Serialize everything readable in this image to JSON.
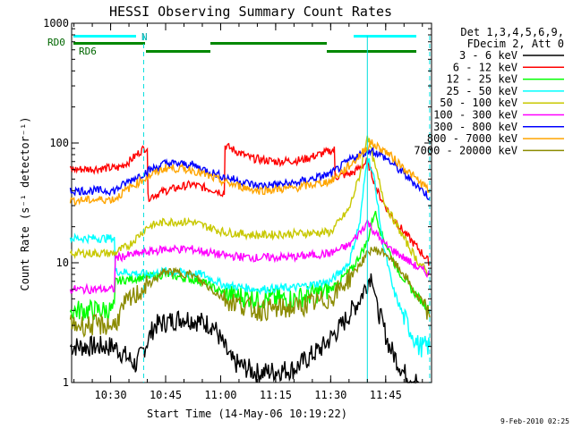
{
  "chart_data": {
    "type": "line",
    "title": "HESSI Observing Summary Count Rates",
    "xlabel": "Start Time (14-May-06 10:19:22)",
    "ylabel": "Count Rate (s⁻¹ detector⁻¹)",
    "y_scale": "log",
    "ylim": [
      1,
      1000
    ],
    "xlim": [
      "10:19:22",
      "11:57:30"
    ],
    "x_ticks": [
      "10:30",
      "10:45",
      "11:00",
      "11:15",
      "11:30",
      "11:45"
    ],
    "y_ticks": [
      "1",
      "10",
      "100",
      "1000"
    ],
    "legend_position": "right",
    "legend_header": [
      "Det 1,3,4,5,6,9,",
      "FDecim 2, Att 0"
    ],
    "series": [
      {
        "name": "3 - 6 keV",
        "color": "#000000",
        "points": [
          [
            "10:19",
            2
          ],
          [
            "10:31",
            2
          ],
          [
            "10:37",
            1.4
          ],
          [
            "10:42",
            3
          ],
          [
            "10:50",
            3.5
          ],
          [
            "10:58",
            3
          ],
          [
            "11:03",
            1.5
          ],
          [
            "11:10",
            1.2
          ],
          [
            "11:20",
            1.3
          ],
          [
            "11:28",
            2
          ],
          [
            "11:33",
            3
          ],
          [
            "11:38",
            5
          ],
          [
            "11:41",
            8
          ],
          [
            "11:43",
            4
          ],
          [
            "11:46",
            2
          ],
          [
            "11:50",
            1.2
          ],
          [
            "11:54",
            1
          ]
        ]
      },
      {
        "name": "6 - 12 keV",
        "color": "#ff0000",
        "points": [
          [
            "10:19",
            60
          ],
          [
            "10:32",
            62
          ],
          [
            "10:35",
            70
          ],
          [
            "10:39",
            90
          ],
          [
            "10:40",
            92
          ],
          [
            "10:40.2",
            35
          ],
          [
            "10:45",
            40
          ],
          [
            "10:52",
            45
          ],
          [
            "10:59",
            40
          ],
          [
            "11:01",
            38
          ],
          [
            "11:01.2",
            95
          ],
          [
            "11:08",
            75
          ],
          [
            "11:15",
            70
          ],
          [
            "11:22",
            72
          ],
          [
            "11:31",
            88
          ],
          [
            "11:31.2",
            52
          ],
          [
            "11:36",
            56
          ],
          [
            "11:40",
            70
          ],
          [
            "11:43",
            38
          ],
          [
            "11:46",
            26
          ],
          [
            "11:50",
            18
          ],
          [
            "11:54",
            13
          ],
          [
            "11:57",
            10
          ]
        ]
      },
      {
        "name": "12 - 25 keV",
        "color": "#00ff00",
        "points": [
          [
            "10:19",
            4
          ],
          [
            "10:31",
            4
          ],
          [
            "10:31.3",
            7
          ],
          [
            "10:38",
            7.5
          ],
          [
            "10:45",
            8
          ],
          [
            "10:55",
            7
          ],
          [
            "11:01",
            5.5
          ],
          [
            "11:10",
            5
          ],
          [
            "11:20",
            5
          ],
          [
            "11:30",
            6
          ],
          [
            "11:36",
            9
          ],
          [
            "11:40",
            15
          ],
          [
            "11:42",
            27
          ],
          [
            "11:44",
            17
          ],
          [
            "11:48",
            9
          ],
          [
            "11:52",
            6
          ],
          [
            "11:57",
            4
          ]
        ]
      },
      {
        "name": "25 - 50 keV",
        "color": "#00ffff",
        "points": [
          [
            "10:19",
            16
          ],
          [
            "10:31",
            16
          ],
          [
            "10:31.3",
            8.5
          ],
          [
            "10:40",
            8
          ],
          [
            "10:45",
            8.5
          ],
          [
            "10:55",
            8
          ],
          [
            "11:01",
            6.5
          ],
          [
            "11:10",
            6
          ],
          [
            "11:20",
            6.2
          ],
          [
            "11:30",
            7
          ],
          [
            "11:35",
            10
          ],
          [
            "11:38",
            22
          ],
          [
            "11:40",
            80
          ],
          [
            "11:42",
            48
          ],
          [
            "11:44",
            16
          ],
          [
            "11:47",
            6
          ],
          [
            "11:50",
            3.5
          ],
          [
            "11:54",
            2
          ],
          [
            "11:57",
            2
          ]
        ]
      },
      {
        "name": "50 - 100 keV",
        "color": "#c8c800",
        "points": [
          [
            "10:19",
            12
          ],
          [
            "10:31",
            12
          ],
          [
            "10:35",
            14
          ],
          [
            "10:40",
            20
          ],
          [
            "10:45",
            22
          ],
          [
            "10:52",
            22
          ],
          [
            "11:01",
            18
          ],
          [
            "11:10",
            17
          ],
          [
            "11:20",
            17.5
          ],
          [
            "11:30",
            18
          ],
          [
            "11:35",
            28
          ],
          [
            "11:38",
            55
          ],
          [
            "11:40",
            118
          ],
          [
            "11:42",
            65
          ],
          [
            "11:45",
            30
          ],
          [
            "11:50",
            16
          ],
          [
            "11:54",
            10
          ],
          [
            "11:57",
            8
          ]
        ]
      },
      {
        "name": "100 - 300 keV",
        "color": "#ff00ff",
        "points": [
          [
            "10:19",
            6
          ],
          [
            "10:31",
            6
          ],
          [
            "10:31.3",
            11
          ],
          [
            "10:38",
            12
          ],
          [
            "10:45",
            13
          ],
          [
            "10:52",
            13
          ],
          [
            "11:01",
            11.5
          ],
          [
            "11:10",
            11
          ],
          [
            "11:20",
            11.2
          ],
          [
            "11:30",
            12
          ],
          [
            "11:35",
            14
          ],
          [
            "11:38",
            18
          ],
          [
            "11:40",
            22
          ],
          [
            "11:42",
            18
          ],
          [
            "11:45",
            14
          ],
          [
            "11:50",
            11
          ],
          [
            "11:54",
            9
          ],
          [
            "11:57",
            8
          ]
        ]
      },
      {
        "name": "300 - 800 keV",
        "color": "#0000ff",
        "points": [
          [
            "10:19",
            40
          ],
          [
            "10:31",
            40
          ],
          [
            "10:35",
            48
          ],
          [
            "10:40",
            58
          ],
          [
            "10:45",
            68
          ],
          [
            "10:52",
            66
          ],
          [
            "11:01",
            52
          ],
          [
            "11:10",
            44
          ],
          [
            "11:20",
            46
          ],
          [
            "11:30",
            55
          ],
          [
            "11:36",
            75
          ],
          [
            "11:41",
            88
          ],
          [
            "11:45",
            75
          ],
          [
            "11:50",
            55
          ],
          [
            "11:54",
            43
          ],
          [
            "11:57",
            35
          ]
        ]
      },
      {
        "name": "800 - 7000 keV",
        "color": "#ffa500",
        "points": [
          [
            "10:19",
            33
          ],
          [
            "10:31",
            34
          ],
          [
            "10:35",
            42
          ],
          [
            "10:40",
            52
          ],
          [
            "10:45",
            62
          ],
          [
            "10:52",
            60
          ],
          [
            "11:01",
            47
          ],
          [
            "11:10",
            40
          ],
          [
            "11:20",
            42
          ],
          [
            "11:30",
            48
          ],
          [
            "11:36",
            68
          ],
          [
            "11:41",
            100
          ],
          [
            "11:45",
            85
          ],
          [
            "11:50",
            62
          ],
          [
            "11:54",
            48
          ],
          [
            "11:57",
            40
          ]
        ]
      },
      {
        "name": "7000 - 20000 keV",
        "color": "#8b8b00",
        "points": [
          [
            "10:19",
            3
          ],
          [
            "10:31",
            3
          ],
          [
            "10:34",
            4.5
          ],
          [
            "10:40",
            6.5
          ],
          [
            "10:45",
            8.5
          ],
          [
            "10:52",
            8
          ],
          [
            "11:01",
            5
          ],
          [
            "11:10",
            4
          ],
          [
            "11:20",
            4.2
          ],
          [
            "11:30",
            5
          ],
          [
            "11:36",
            8
          ],
          [
            "11:41",
            13
          ],
          [
            "11:45",
            12
          ],
          [
            "11:50",
            8
          ],
          [
            "11:54",
            5
          ],
          [
            "11:57",
            3.5
          ]
        ]
      }
    ],
    "annotations": {
      "attenuator_markers": [
        "RD0",
        "RD6",
        "N"
      ],
      "vertical_lines": [
        "10:39",
        "11:40",
        "11:57"
      ]
    }
  },
  "footer": {
    "date": "9-Feb-2010 02:25"
  }
}
